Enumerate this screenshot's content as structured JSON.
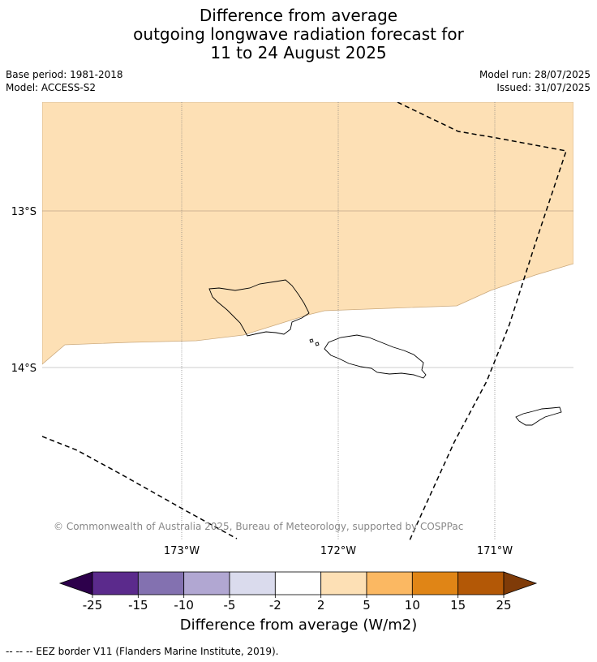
{
  "title": {
    "line1": "Difference from average",
    "line2": "outgoing longwave radiation forecast for",
    "line3": "11 to 24 August 2025"
  },
  "meta": {
    "base_period": "Base period: 1981-2018",
    "model": "Model: ACCESS-S2",
    "model_run": "Model run: 28/07/2025",
    "issued": "Issued: 31/07/2025"
  },
  "map": {
    "lat_labels": [
      "13°S",
      "14°S"
    ],
    "lon_labels": [
      "173°W",
      "172°W",
      "171°W"
    ],
    "copyright": "© Commonwealth of Australia 2025, Bureau of Meteorology, supported by COSPPac",
    "anomaly_fill_color": "#fde0b5",
    "anomaly_fill_category": "2 to 5"
  },
  "colorbar": {
    "ticks": [
      "-25",
      "-15",
      "-10",
      "-5",
      "-2",
      "2",
      "5",
      "10",
      "15",
      "25"
    ],
    "colors": [
      "#5b2a8c",
      "#8371b0",
      "#b1a7d2",
      "#dadbed",
      "#ffffff",
      "#fde0b5",
      "#fbb862",
      "#e08516",
      "#b35806"
    ],
    "under_color": "#2d004b",
    "over_color": "#7f3b08",
    "label": "Difference from average (W/m2)"
  },
  "footer": "--  --  -- EEZ border V11 (Flanders Marine Institute, 2019)."
}
